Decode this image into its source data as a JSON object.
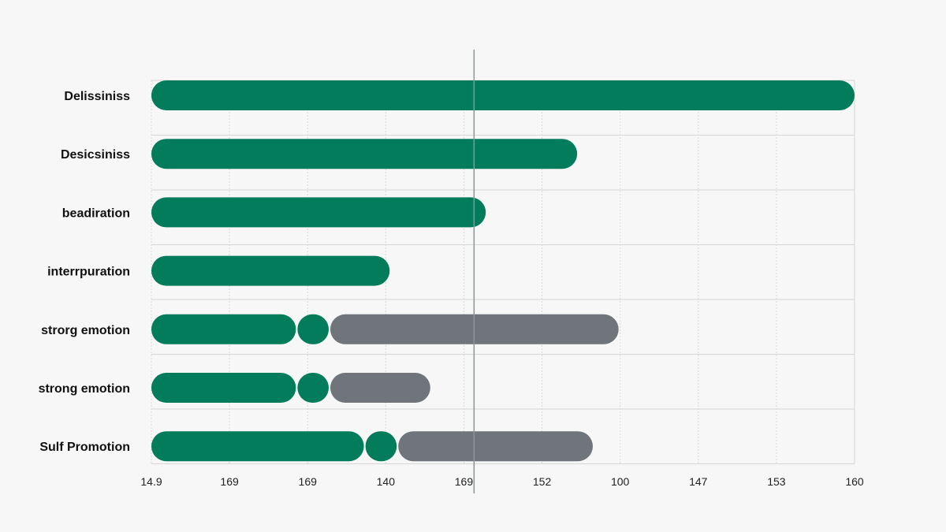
{
  "chart_data": {
    "type": "bar",
    "orientation": "horizontal",
    "stacked": true,
    "title": "",
    "xlabel": "",
    "ylabel": "",
    "grid": true,
    "legend": "none",
    "categories": [
      "Delissiniss",
      "Desicsiniss",
      "beadiration",
      "interrpuration",
      "strorg emotion",
      "strong emotion",
      "Sulf Promotion"
    ],
    "x_tick_labels": [
      "14.9",
      "169",
      "169",
      "140",
      "169",
      "152",
      "100",
      "147",
      "153",
      "160"
    ],
    "xlim": [
      0,
      9
    ],
    "series": [
      {
        "values": [
          9.0,
          5.45,
          4.28,
          3.05,
          1.85,
          1.85,
          2.72
        ]
      },
      {
        "values": [
          0,
          0,
          0,
          0,
          0.42,
          0.42,
          0.42
        ]
      },
      {
        "values": [
          0,
          0,
          0,
          0,
          3.71,
          1.3,
          2.51
        ]
      }
    ],
    "reference_line_x": 4.13,
    "colors": {
      "series": [
        "#037c5b",
        "#037c5b",
        "#6f757a"
      ],
      "grid": "#d6d6d6",
      "reference_line": "#8a9599",
      "background": "#f7f7f7"
    }
  }
}
